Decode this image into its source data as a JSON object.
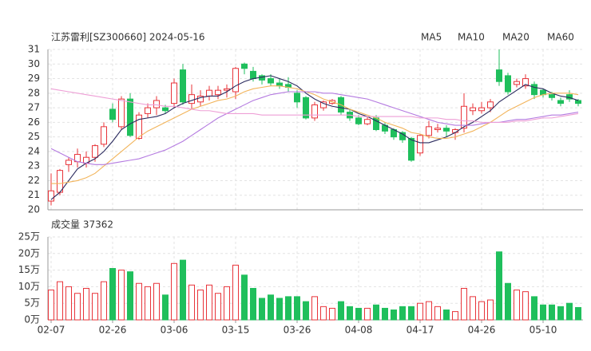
{
  "chart_data": [
    {
      "type": "candlestick",
      "title": "江苏雷利[SZ300660] 2024-05-16",
      "categories": [
        "02-07",
        null,
        null,
        null,
        null,
        null,
        null,
        "02-26",
        null,
        null,
        null,
        null,
        null,
        null,
        "03-06",
        null,
        null,
        null,
        null,
        null,
        null,
        "03-15",
        null,
        null,
        null,
        null,
        null,
        null,
        "03-26",
        null,
        null,
        null,
        null,
        null,
        null,
        "04-08",
        null,
        null,
        null,
        null,
        null,
        null,
        "04-17",
        null,
        null,
        null,
        null,
        null,
        null,
        "04-26",
        null,
        null,
        null,
        null,
        null,
        null,
        "05-10",
        null,
        null,
        null,
        null
      ],
      "open": [
        20.6,
        21.2,
        23.1,
        23.3,
        23.2,
        23.6,
        24.5,
        26.9,
        25.7,
        27.6,
        24.9,
        26.6,
        27.0,
        27.0,
        27.3,
        29.6,
        27.3,
        27.4,
        27.8,
        27.9,
        28.2,
        28.1,
        30.0,
        29.5,
        29.2,
        29.0,
        28.7,
        28.6,
        28.0,
        27.7,
        26.3,
        27.0,
        27.3,
        27.7,
        26.7,
        26.3,
        25.9,
        26.3,
        25.8,
        25.5,
        25.3,
        24.9,
        23.9,
        25.1,
        25.5,
        25.6,
        25.3,
        25.6,
        26.8,
        26.8,
        27.0,
        29.6,
        29.2,
        28.6,
        28.5,
        28.6,
        28.2,
        27.9,
        27.5,
        27.9,
        27.5
      ],
      "high": [
        22.5,
        22.8,
        23.6,
        24.2,
        24.0,
        24.5,
        26.0,
        27.3,
        27.8,
        28.0,
        26.7,
        27.3,
        27.8,
        27.2,
        29.0,
        30.0,
        28.6,
        28.2,
        28.5,
        28.5,
        28.6,
        29.8,
        30.1,
        29.8,
        29.3,
        29.3,
        29.0,
        29.1,
        28.2,
        27.8,
        27.4,
        27.5,
        27.6,
        27.8,
        26.9,
        26.5,
        26.4,
        26.5,
        26.0,
        25.6,
        25.4,
        25.0,
        25.2,
        26.1,
        25.9,
        25.8,
        25.6,
        28.0,
        27.3,
        27.4,
        27.6,
        31.0,
        29.4,
        29.0,
        29.3,
        28.8,
        28.3,
        28.1,
        27.7,
        28.2,
        27.6
      ],
      "low": [
        20.3,
        21.0,
        22.6,
        22.9,
        22.9,
        23.3,
        24.3,
        26.0,
        25.5,
        25.0,
        24.8,
        26.3,
        26.5,
        26.6,
        27.0,
        27.2,
        26.9,
        27.1,
        27.5,
        27.6,
        27.7,
        27.6,
        29.3,
        28.8,
        28.6,
        28.5,
        28.3,
        28.1,
        27.0,
        26.2,
        26.1,
        26.8,
        27.2,
        26.5,
        26.1,
        25.8,
        25.8,
        25.4,
        25.2,
        24.8,
        24.6,
        23.3,
        23.7,
        24.9,
        25.3,
        25.0,
        24.8,
        25.3,
        26.5,
        26.6,
        26.7,
        28.5,
        27.9,
        28.4,
        28.3,
        27.6,
        27.7,
        27.5,
        27.1,
        27.4,
        27.1
      ],
      "close": [
        21.3,
        22.7,
        23.4,
        23.8,
        23.6,
        24.4,
        25.7,
        26.2,
        27.6,
        25.1,
        26.5,
        27.0,
        27.5,
        26.8,
        28.7,
        27.4,
        27.9,
        27.8,
        28.2,
        28.2,
        28.3,
        29.7,
        29.7,
        29.0,
        28.9,
        28.7,
        28.5,
        28.4,
        27.4,
        26.3,
        27.2,
        27.4,
        27.5,
        26.7,
        26.3,
        25.9,
        26.2,
        25.5,
        25.4,
        25.0,
        24.8,
        23.4,
        25.1,
        25.7,
        25.6,
        25.4,
        25.5,
        27.1,
        27.0,
        27.0,
        27.4,
        28.8,
        28.1,
        28.8,
        29.0,
        27.9,
        27.9,
        27.7,
        27.3,
        27.6,
        27.3
      ],
      "up_color": "#e8343a",
      "down_color": "#1fbf5c",
      "series": [
        {
          "name": "MA5",
          "color": "#2a2a5e",
          "values": [
            20.7,
            21.2,
            22.0,
            22.8,
            23.2,
            23.5,
            24.0,
            24.7,
            25.5,
            25.9,
            26.2,
            26.3,
            26.4,
            26.6,
            27.0,
            27.3,
            27.5,
            27.7,
            27.8,
            27.8,
            28.1,
            28.5,
            28.8,
            29.0,
            29.1,
            29.2,
            29.0,
            28.8,
            28.5,
            28.0,
            27.6,
            27.3,
            27.1,
            27.0,
            26.9,
            26.6,
            26.4,
            26.1,
            25.8,
            25.5,
            25.2,
            24.8,
            24.6,
            24.6,
            24.8,
            25.0,
            25.3,
            25.7,
            26.0,
            26.4,
            26.8,
            27.4,
            27.8,
            28.2,
            28.6,
            28.4,
            28.3,
            28.0,
            27.8,
            27.7,
            27.5
          ]
        },
        {
          "name": "MA10",
          "color": "#f2b45b",
          "values": [
            21.8,
            21.8,
            21.9,
            22.0,
            22.2,
            22.5,
            23.0,
            23.5,
            24.0,
            24.5,
            25.0,
            25.4,
            25.7,
            26.0,
            26.3,
            26.6,
            26.9,
            27.1,
            27.3,
            27.5,
            27.6,
            27.8,
            28.1,
            28.3,
            28.4,
            28.5,
            28.5,
            28.4,
            28.3,
            28.1,
            27.9,
            27.6,
            27.4,
            27.2,
            26.9,
            26.7,
            26.5,
            26.3,
            26.0,
            25.8,
            25.6,
            25.3,
            25.2,
            25.0,
            24.9,
            24.9,
            25.0,
            25.2,
            25.4,
            25.7,
            26.0,
            26.4,
            26.8,
            27.1,
            27.4,
            27.7,
            27.9,
            28.0,
            28.0,
            28.0,
            27.9
          ]
        },
        {
          "name": "MA20",
          "color": "#b47ae0",
          "values": [
            24.2,
            23.9,
            23.6,
            23.3,
            23.2,
            23.1,
            23.1,
            23.2,
            23.3,
            23.4,
            23.5,
            23.7,
            23.9,
            24.1,
            24.4,
            24.7,
            25.1,
            25.5,
            25.9,
            26.3,
            26.6,
            26.9,
            27.2,
            27.5,
            27.7,
            27.9,
            28.0,
            28.1,
            28.1,
            28.1,
            28.1,
            28.0,
            28.0,
            27.9,
            27.8,
            27.7,
            27.6,
            27.4,
            27.2,
            27.0,
            26.8,
            26.6,
            26.4,
            26.2,
            26.0,
            25.9,
            25.8,
            25.8,
            25.8,
            25.9,
            26.0,
            26.0,
            26.1,
            26.2,
            26.2,
            26.3,
            26.4,
            26.5,
            26.5,
            26.6,
            26.7
          ]
        },
        {
          "name": "MA60",
          "color": "#ee9fd6",
          "values": [
            28.3,
            28.2,
            28.1,
            28.0,
            27.9,
            27.8,
            27.7,
            27.6,
            27.5,
            27.4,
            27.3,
            27.2,
            27.2,
            27.1,
            27.1,
            27.0,
            26.9,
            26.8,
            26.8,
            26.7,
            26.6,
            26.6,
            26.6,
            26.6,
            26.5,
            26.5,
            26.5,
            26.5,
            26.5,
            26.5,
            26.5,
            26.5,
            26.5,
            26.5,
            26.5,
            26.4,
            26.4,
            26.4,
            26.4,
            26.4,
            26.4,
            26.4,
            26.3,
            26.3,
            26.3,
            26.2,
            26.2,
            26.1,
            26.1,
            26.0,
            26.0,
            26.0,
            26.0,
            26.1,
            26.1,
            26.2,
            26.3,
            26.3,
            26.4,
            26.5,
            26.6
          ]
        }
      ],
      "ylim": [
        20,
        31
      ],
      "yticks": [
        20,
        21,
        22,
        23,
        24,
        25,
        26,
        27,
        28,
        29,
        30,
        31
      ],
      "grid": true
    },
    {
      "type": "bar",
      "title": "成交量 37362",
      "values": [
        9,
        11.5,
        10,
        8,
        9.5,
        8,
        11.5,
        15.5,
        15,
        14.5,
        11,
        10,
        11,
        7.5,
        17,
        18,
        10.5,
        9,
        10.5,
        8,
        10,
        16.5,
        13.5,
        9.5,
        6.5,
        7.5,
        6.5,
        7,
        7,
        5.5,
        7,
        4,
        3.5,
        5.5,
        4,
        3.5,
        3.5,
        4.5,
        3.5,
        3,
        4,
        4,
        5,
        5.5,
        4,
        3,
        2.5,
        9.5,
        7,
        5.5,
        6,
        20.5,
        11,
        9,
        8.5,
        7,
        4.5,
        4.5,
        4,
        5,
        3.7362
      ],
      "ylim": [
        0,
        25
      ],
      "yticks": [
        {
          "value": 0,
          "label": "0万"
        },
        {
          "value": 5,
          "label": "5万"
        },
        {
          "value": 10,
          "label": "10万"
        },
        {
          "value": 15,
          "label": "15万"
        },
        {
          "value": 20,
          "label": "20万"
        },
        {
          "value": 25,
          "label": "25万"
        }
      ],
      "grid": true
    }
  ]
}
